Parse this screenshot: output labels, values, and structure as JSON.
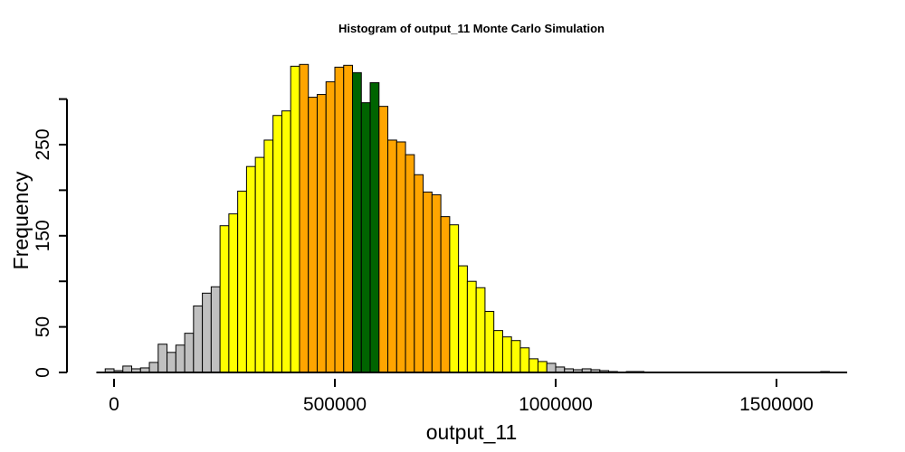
{
  "chart_data": {
    "type": "bar",
    "title": "Histogram of  output_11  Monte Carlo Simulation",
    "xlabel": "output_11",
    "ylabel": "Frequency",
    "x_ticks": [
      0,
      500000,
      1000000,
      1500000
    ],
    "x_tick_labels": [
      "0",
      "500000",
      "1000000",
      "1500000"
    ],
    "y_ticks": [
      0,
      50,
      150,
      250
    ],
    "y_tick_labels": [
      "0",
      "50",
      "150",
      "250"
    ],
    "xlim": [
      -40000,
      1660000
    ],
    "ylim": [
      0,
      300
    ],
    "bin_width": 20000,
    "bin_start": -40000,
    "colors": {
      "tail": "#c0c0c0",
      "outer": "#ffff00",
      "inner": "#ffa500",
      "center": "#006400"
    },
    "values": [
      0,
      4,
      2,
      7,
      4,
      5,
      11,
      31,
      22,
      30,
      43,
      73,
      87,
      94,
      161,
      174,
      199,
      226,
      236,
      255,
      282,
      287,
      336,
      338,
      302,
      305,
      319,
      335,
      337,
      329,
      296,
      318,
      292,
      255,
      253,
      239,
      217,
      198,
      195,
      171,
      162,
      117,
      100,
      93,
      67,
      46,
      39,
      35,
      27,
      15,
      12,
      10,
      6,
      4,
      3,
      4,
      3,
      2,
      1,
      0,
      1,
      1,
      0,
      0,
      0,
      0,
      0,
      0,
      0,
      0,
      0,
      0,
      0,
      0,
      0,
      0,
      0,
      0,
      0,
      0,
      0,
      0,
      1
    ],
    "bin_colors": [
      "tail",
      "tail",
      "tail",
      "tail",
      "tail",
      "tail",
      "tail",
      "tail",
      "tail",
      "tail",
      "tail",
      "tail",
      "tail",
      "tail",
      "outer",
      "outer",
      "outer",
      "outer",
      "outer",
      "outer",
      "outer",
      "outer",
      "outer",
      "inner",
      "inner",
      "inner",
      "inner",
      "inner",
      "inner",
      "center",
      "center",
      "center",
      "inner",
      "inner",
      "inner",
      "inner",
      "inner",
      "inner",
      "inner",
      "inner",
      "outer",
      "outer",
      "outer",
      "outer",
      "outer",
      "outer",
      "outer",
      "outer",
      "outer",
      "outer",
      "outer",
      "tail",
      "tail",
      "tail",
      "tail",
      "tail",
      "tail",
      "tail",
      "tail",
      "tail",
      "tail",
      "tail",
      "tail",
      "tail",
      "tail",
      "tail",
      "tail",
      "tail",
      "tail",
      "tail",
      "tail",
      "tail",
      "tail",
      "tail",
      "tail",
      "tail",
      "tail",
      "tail",
      "tail",
      "tail",
      "tail",
      "tail",
      "tail",
      "tail"
    ]
  }
}
